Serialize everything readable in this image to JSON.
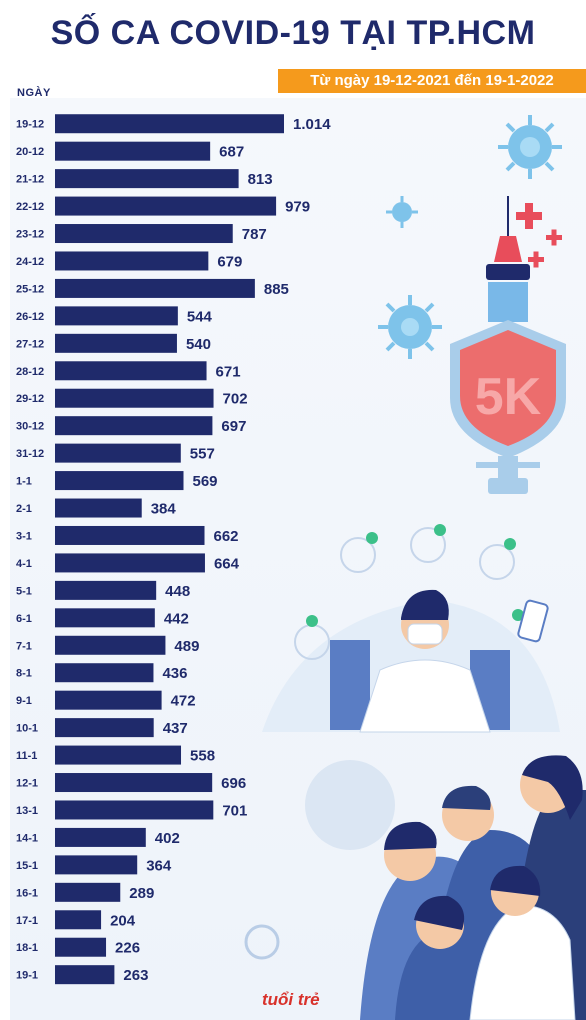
{
  "header": {
    "title": "SỐ CA COVID-19 TẠI TP.HCM",
    "subtitle": "Từ ngày 19-12-2021 đến 19-1-2022"
  },
  "axis_label": "NGÀY",
  "logo": {
    "text": "tuổi trẻ"
  },
  "colors": {
    "bar": "#1f2a6b",
    "title": "#1f2a6b",
    "accent": "#f59a1c",
    "shield": "#ec6d6d"
  },
  "illustrations": {
    "vaccine_icon_text": "5K"
  },
  "chart_data": {
    "type": "bar",
    "orientation": "horizontal",
    "title": "SỐ CA COVID-19 TẠI TP.HCM",
    "subtitle": "Từ ngày 19-12-2021 đến 19-1-2022",
    "ylabel": "NGÀY",
    "categories": [
      "19-12",
      "20-12",
      "21-12",
      "22-12",
      "23-12",
      "24-12",
      "25-12",
      "26-12",
      "27-12",
      "28-12",
      "29-12",
      "30-12",
      "31-12",
      "1-1",
      "2-1",
      "3-1",
      "4-1",
      "5-1",
      "6-1",
      "7-1",
      "8-1",
      "9-1",
      "10-1",
      "11-1",
      "12-1",
      "13-1",
      "14-1",
      "15-1",
      "16-1",
      "17-1",
      "18-1",
      "19-1"
    ],
    "values": [
      1014,
      687,
      813,
      979,
      787,
      679,
      885,
      544,
      540,
      671,
      702,
      697,
      557,
      569,
      384,
      662,
      664,
      448,
      442,
      489,
      436,
      472,
      437,
      558,
      696,
      701,
      402,
      364,
      289,
      204,
      226,
      263
    ],
    "value_labels": [
      "1.014",
      "687",
      "813",
      "979",
      "787",
      "679",
      "885",
      "544",
      "540",
      "671",
      "702",
      "697",
      "557",
      "569",
      "384",
      "662",
      "664",
      "448",
      "442",
      "489",
      "436",
      "472",
      "437",
      "558",
      "696",
      "701",
      "402",
      "364",
      "289",
      "204",
      "226",
      "263"
    ],
    "xlim": [
      0,
      1014
    ],
    "grid": false,
    "legend": "none"
  }
}
